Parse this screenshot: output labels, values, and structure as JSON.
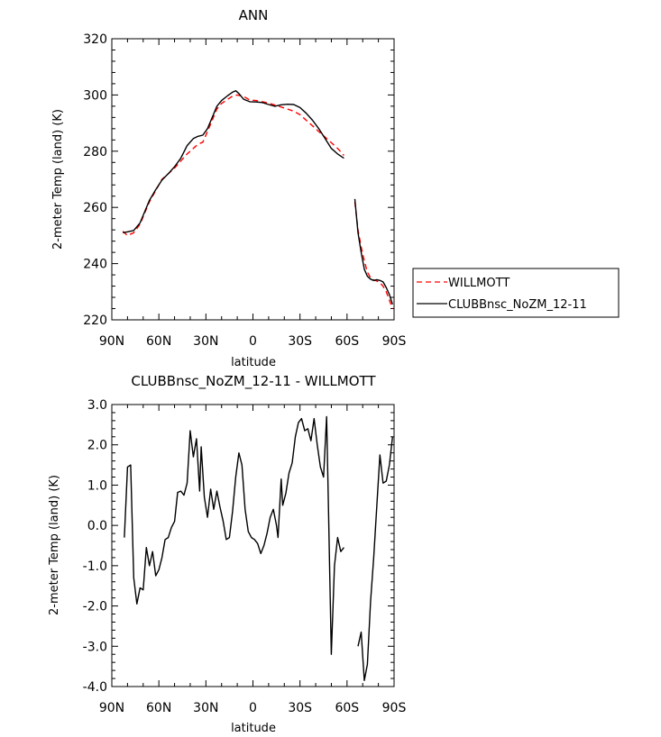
{
  "chart_data": [
    {
      "type": "line",
      "title": "ANN",
      "xlabel": "latitude",
      "ylabel": "2-meter Temp (land) (K)",
      "xlim": [
        90,
        -90
      ],
      "ylim": [
        220,
        320
      ],
      "xticks": [
        90,
        60,
        30,
        0,
        -30,
        -60,
        -90
      ],
      "xticklabels": [
        "90N",
        "60N",
        "30N",
        "0",
        "30S",
        "60S",
        "90S"
      ],
      "yticks": [
        220,
        240,
        260,
        280,
        300,
        320
      ],
      "yticklabels": [
        "220",
        "240",
        "260",
        "280",
        "300",
        "320"
      ],
      "grid": false,
      "legend": {
        "placement": "right",
        "entries": [
          {
            "name": "WILLMOTT",
            "color": "#ff0000",
            "dash": "dashed"
          },
          {
            "name": "CLUBBnsc_NoZM_12-11",
            "color": "#000000",
            "dash": "solid"
          }
        ]
      },
      "series": [
        {
          "name": "WILLMOTT",
          "color": "#ff0000",
          "dash": "dashed",
          "segments": [
            [
              [
                83,
                251.5
              ],
              [
                80,
                250
              ],
              [
                76,
                251
              ],
              [
                72,
                254
              ],
              [
                69,
                258
              ],
              [
                66,
                262
              ],
              [
                62,
                266
              ],
              [
                58,
                270
              ],
              [
                54,
                272
              ],
              [
                50,
                274
              ],
              [
                46,
                276.5
              ],
              [
                42,
                279
              ],
              [
                38,
                281
              ],
              [
                35,
                282.5
              ],
              [
                32,
                283.2
              ],
              [
                29,
                287
              ],
              [
                26,
                291
              ],
              [
                23,
                295
              ],
              [
                20,
                297
              ],
              [
                16,
                298.5
              ],
              [
                13,
                299.6
              ],
              [
                10,
                300
              ],
              [
                6,
                299.5
              ],
              [
                2,
                298.2
              ],
              [
                -2,
                298
              ],
              [
                -6,
                297.6
              ],
              [
                -10,
                297.1
              ],
              [
                -14,
                296.4
              ],
              [
                -18,
                295.7
              ],
              [
                -22,
                295
              ],
              [
                -26,
                294.2
              ],
              [
                -30,
                293
              ],
              [
                -34,
                291
              ],
              [
                -38,
                289
              ],
              [
                -42,
                287
              ],
              [
                -46,
                285
              ],
              [
                -50,
                283
              ],
              [
                -54,
                281
              ],
              [
                -58,
                278.5
              ]
            ],
            [
              [
                -65,
                262
              ],
              [
                -67,
                252
              ],
              [
                -69,
                246
              ],
              [
                -71,
                241
              ],
              [
                -73,
                237
              ],
              [
                -75,
                235
              ],
              [
                -77,
                234.2
              ],
              [
                -79,
                233.8
              ],
              [
                -81,
                233.2
              ],
              [
                -83,
                232
              ],
              [
                -85,
                230
              ],
              [
                -87,
                227
              ],
              [
                -89,
                224
              ]
            ]
          ]
        },
        {
          "name": "CLUBBnsc_NoZM_12-11",
          "color": "#000000",
          "dash": "solid",
          "segments": [
            [
              [
                83,
                251
              ],
              [
                80,
                251.3
              ],
              [
                76,
                251.8
              ],
              [
                72,
                254.5
              ],
              [
                69,
                258.5
              ],
              [
                66,
                262.5
              ],
              [
                62,
                266.3
              ],
              [
                58,
                269.7
              ],
              [
                54,
                272
              ],
              [
                50,
                274.5
              ],
              [
                46,
                277.5
              ],
              [
                42,
                282
              ],
              [
                38,
                284.5
              ],
              [
                35,
                285.3
              ],
              [
                32,
                285.7
              ],
              [
                29,
                288
              ],
              [
                26,
                292
              ],
              [
                23,
                296
              ],
              [
                20,
                298
              ],
              [
                16,
                299.8
              ],
              [
                13,
                301
              ],
              [
                11,
                301.5
              ],
              [
                9,
                300.5
              ],
              [
                6,
                298.5
              ],
              [
                2,
                297.6
              ],
              [
                -2,
                297.5
              ],
              [
                -6,
                297.3
              ],
              [
                -10,
                296.6
              ],
              [
                -14,
                296
              ],
              [
                -18,
                296.5
              ],
              [
                -22,
                296.7
              ],
              [
                -26,
                296.6
              ],
              [
                -30,
                295.5
              ],
              [
                -34,
                293.5
              ],
              [
                -38,
                291
              ],
              [
                -42,
                288
              ],
              [
                -46,
                284.5
              ],
              [
                -50,
                281
              ],
              [
                -54,
                279
              ],
              [
                -58,
                277.5
              ]
            ],
            [
              [
                -65,
                263
              ],
              [
                -67,
                251
              ],
              [
                -69,
                244
              ],
              [
                -71,
                238
              ],
              [
                -73,
                235.5
              ],
              [
                -75,
                234.5
              ],
              [
                -77,
                234
              ],
              [
                -79,
                234.3
              ],
              [
                -81,
                234
              ],
              [
                -83,
                233.5
              ],
              [
                -85,
                231.5
              ],
              [
                -87,
                229
              ],
              [
                -89,
                225.5
              ]
            ]
          ]
        }
      ]
    },
    {
      "type": "line",
      "title": "CLUBBnsc_NoZM_12-11 - WILLMOTT",
      "xlabel": "latitude",
      "ylabel": "2-meter Temp (land) (K)",
      "xlim": [
        90,
        -90
      ],
      "ylim": [
        -4.0,
        3.0
      ],
      "xticks": [
        90,
        60,
        30,
        0,
        -30,
        -60,
        -90
      ],
      "xticklabels": [
        "90N",
        "60N",
        "30N",
        "0",
        "30S",
        "60S",
        "90S"
      ],
      "yticks": [
        -4,
        -3,
        -2,
        -1,
        0,
        1,
        2,
        3
      ],
      "yticklabels": [
        "-4.0",
        "-3.0",
        "-2.0",
        "-1.0",
        "0.0",
        "1.0",
        "2.0",
        "3.0"
      ],
      "grid": false,
      "series": [
        {
          "color": "#000000",
          "dash": "solid",
          "segments": [
            [
              [
                82,
                -0.3
              ],
              [
                80,
                1.45
              ],
              [
                78,
                1.5
              ],
              [
                76,
                -1.3
              ],
              [
                74,
                -1.95
              ],
              [
                72,
                -1.55
              ],
              [
                70,
                -1.6
              ],
              [
                68,
                -0.55
              ],
              [
                66,
                -1.0
              ],
              [
                64,
                -0.65
              ],
              [
                62,
                -1.25
              ],
              [
                60,
                -1.1
              ],
              [
                58,
                -0.8
              ],
              [
                56,
                -0.35
              ],
              [
                54,
                -0.3
              ],
              [
                52,
                -0.05
              ],
              [
                50,
                0.1
              ],
              [
                48,
                0.82
              ],
              [
                46,
                0.85
              ],
              [
                44,
                0.75
              ],
              [
                42,
                1.05
              ],
              [
                40,
                2.35
              ],
              [
                38,
                1.7
              ],
              [
                36,
                2.15
              ],
              [
                34,
                0.85
              ],
              [
                33,
                1.95
              ],
              [
                31,
                0.7
              ],
              [
                29,
                0.2
              ],
              [
                27,
                0.9
              ],
              [
                25,
                0.4
              ],
              [
                23,
                0.85
              ],
              [
                21,
                0.45
              ],
              [
                19,
                0.1
              ],
              [
                17,
                -0.35
              ],
              [
                15,
                -0.3
              ],
              [
                13,
                0.35
              ],
              [
                11,
                1.2
              ],
              [
                9,
                1.8
              ],
              [
                7,
                1.5
              ],
              [
                5,
                0.4
              ],
              [
                3,
                -0.15
              ],
              [
                1,
                -0.3
              ],
              [
                -1,
                -0.35
              ],
              [
                -3,
                -0.45
              ],
              [
                -5,
                -0.7
              ],
              [
                -7,
                -0.5
              ],
              [
                -9,
                -0.2
              ],
              [
                -11,
                0.2
              ],
              [
                -13,
                0.4
              ],
              [
                -15,
                0.0
              ],
              [
                -16,
                -0.3
              ],
              [
                -18,
                1.15
              ],
              [
                -19,
                0.5
              ],
              [
                -21,
                0.8
              ],
              [
                -23,
                1.3
              ],
              [
                -25,
                1.55
              ],
              [
                -27,
                2.2
              ],
              [
                -29,
                2.55
              ],
              [
                -31,
                2.65
              ],
              [
                -33,
                2.35
              ],
              [
                -35,
                2.4
              ],
              [
                -37,
                2.1
              ],
              [
                -39,
                2.65
              ],
              [
                -41,
                2.0
              ],
              [
                -43,
                1.45
              ],
              [
                -45,
                1.2
              ],
              [
                -47,
                2.7
              ],
              [
                -48,
                0.7
              ],
              [
                -50,
                -3.2
              ],
              [
                -52,
                -1.0
              ],
              [
                -54,
                -0.3
              ],
              [
                -56,
                -0.65
              ],
              [
                -58,
                -0.55
              ]
            ],
            [
              [
                -67,
                -3.0
              ],
              [
                -69,
                -2.65
              ],
              [
                -71,
                -3.85
              ],
              [
                -73,
                -3.45
              ],
              [
                -75,
                -1.9
              ],
              [
                -77,
                -0.8
              ],
              [
                -79,
                0.5
              ],
              [
                -81,
                1.75
              ],
              [
                -83,
                1.05
              ],
              [
                -85,
                1.1
              ],
              [
                -87,
                1.5
              ],
              [
                -89,
                2.2
              ]
            ]
          ]
        }
      ]
    }
  ]
}
